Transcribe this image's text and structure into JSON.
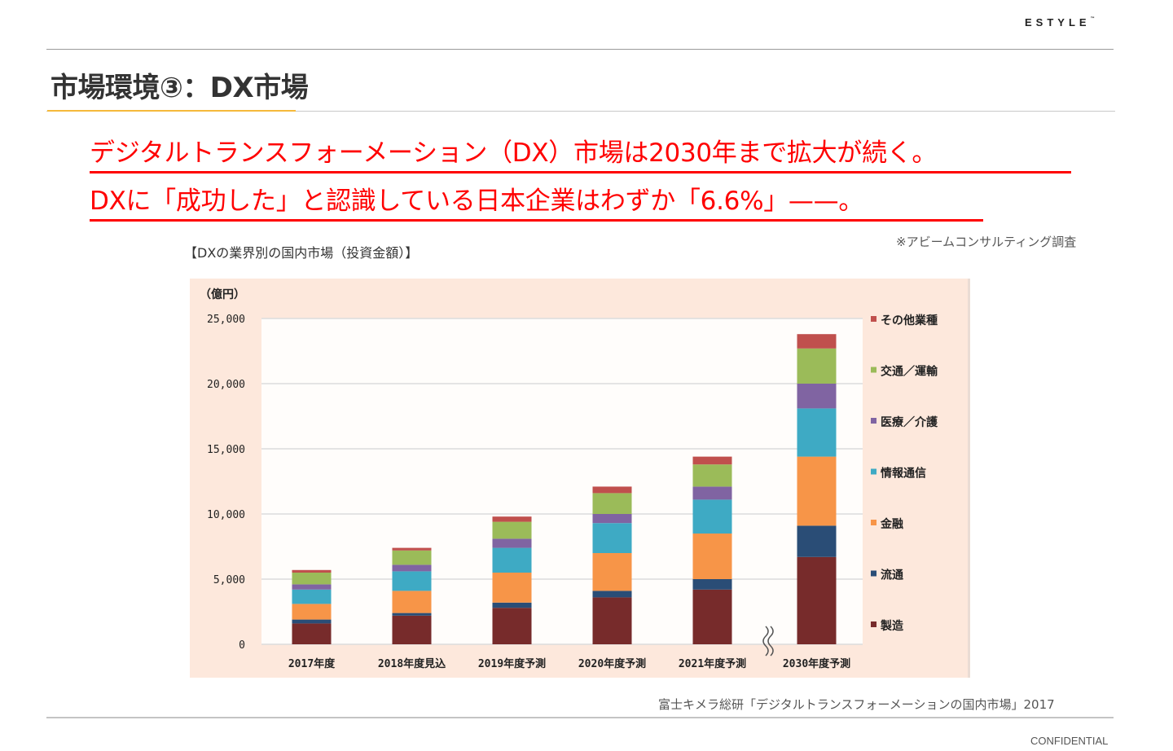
{
  "header": {
    "logo": "ESTYLE",
    "logo_tm": "™",
    "title": "市場環境③：DX市場"
  },
  "headlines": [
    "デジタルトランスフォーメーション（DX）市場は2030年まで拡大が続く。",
    "DXに「成功した」と認識している日本企業はわずか「6.6%」——。"
  ],
  "survey_note": "※アビームコンサルティング調査",
  "chart_caption": "【DXの業界別の国内市場（投資金額）】",
  "footer": {
    "source": "富士キメラ総研「デジタルトランスフォーメーションの国内市場」2017",
    "confidential": "CONFIDENTIAL"
  },
  "chart_data": {
    "type": "bar",
    "stacked": true,
    "title": "DXの業界別の国内市場（投資金額）",
    "ylabel": "（億円）",
    "xlabel": "",
    "ylim": [
      0,
      25000
    ],
    "yticks": [
      0,
      5000,
      10000,
      15000,
      20000,
      25000
    ],
    "ytick_labels": [
      "0",
      "5,000",
      "10,000",
      "15,000",
      "20,000",
      "25,000"
    ],
    "grid": true,
    "legend_position": "right",
    "axis_break_between": [
      "2021年度予測",
      "2030年度予測"
    ],
    "categories": [
      "2017年度",
      "2018年度見込",
      "2019年度予測",
      "2020年度予測",
      "2021年度予測",
      "2030年度予測"
    ],
    "series": [
      {
        "name": "製造",
        "color": "#772b2b",
        "values": [
          1600,
          2200,
          2800,
          3600,
          4200,
          6700
        ]
      },
      {
        "name": "流通",
        "color": "#2a4d76",
        "values": [
          300,
          200,
          400,
          500,
          800,
          2400
        ]
      },
      {
        "name": "金融",
        "color": "#f79548",
        "values": [
          1200,
          1700,
          2300,
          2900,
          3500,
          5300
        ]
      },
      {
        "name": "情報通信",
        "color": "#3eaac4",
        "values": [
          1100,
          1500,
          1900,
          2300,
          2600,
          3700
        ]
      },
      {
        "name": "医療／介護",
        "color": "#8064a2",
        "values": [
          400,
          500,
          700,
          700,
          1000,
          1900
        ]
      },
      {
        "name": "交通／運輸",
        "color": "#9bbb59",
        "values": [
          900,
          1100,
          1300,
          1600,
          1700,
          2700
        ]
      },
      {
        "name": "その他業種",
        "color": "#c0504d",
        "values": [
          200,
          200,
          400,
          500,
          600,
          1100
        ]
      }
    ]
  }
}
